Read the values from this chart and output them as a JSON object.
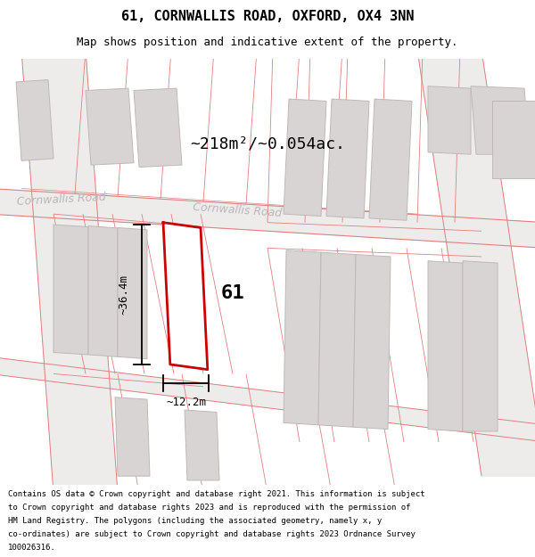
{
  "title": "61, CORNWALLIS ROAD, OXFORD, OX4 3NN",
  "subtitle": "Map shows position and indicative extent of the property.",
  "area_text": "~218m²/~0.054ac.",
  "dim_width": "~12.2m",
  "dim_height": "~36.4m",
  "label_number": "61",
  "footer_lines": [
    "Contains OS data © Crown copyright and database right 2021. This information is subject",
    "to Crown copyright and database rights 2023 and is reproduced with the permission of",
    "HM Land Registry. The polygons (including the associated geometry, namely x, y",
    "co-ordinates) are subject to Crown copyright and database rights 2023 Ordnance Survey",
    "100026316."
  ],
  "bg_color": "#ffffff",
  "map_bg": "#f8f4f4",
  "building_fill": "#d8d4d4",
  "building_stroke": "#c0b8b8",
  "road_line_color": "#e08080",
  "property_color": "#cc0000",
  "dim_color": "#000000",
  "road_label_color": "#b8b8b8",
  "title_color": "#000000",
  "footer_color": "#000000",
  "area_color": "#000000"
}
